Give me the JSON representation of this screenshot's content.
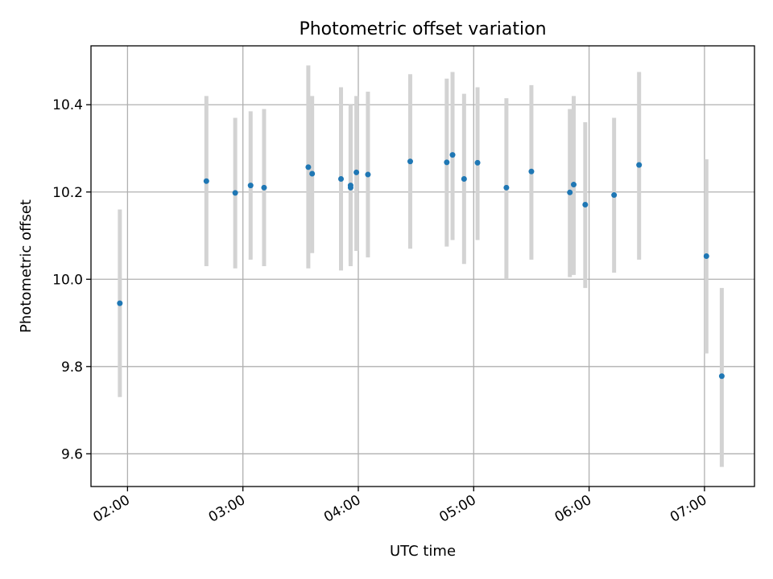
{
  "chart_data": {
    "type": "scatter",
    "title": "Photometric offset variation",
    "xlabel": "UTC time",
    "ylabel": "Photometric offset",
    "xlim": [
      "01:41",
      "07:26"
    ],
    "ylim": [
      9.525,
      10.535
    ],
    "x_ticks": [
      "02:00",
      "03:00",
      "04:00",
      "05:00",
      "06:00",
      "07:00"
    ],
    "y_ticks": [
      9.6,
      9.8,
      10.0,
      10.2,
      10.4
    ],
    "y_tick_labels": [
      "9.6",
      "9.8",
      "10.0",
      "10.2",
      "10.4"
    ],
    "grid": true,
    "series": [
      {
        "marker_color": "#1f77b4",
        "errorbar_color": "#d3d3d3",
        "points": [
          {
            "x": "01:56",
            "y": 9.945,
            "lo": 9.73,
            "hi": 10.16
          },
          {
            "x": "02:41",
            "y": 10.225,
            "lo": 10.03,
            "hi": 10.42
          },
          {
            "x": "02:56",
            "y": 10.198,
            "lo": 10.025,
            "hi": 10.37
          },
          {
            "x": "03:04",
            "y": 10.215,
            "lo": 10.045,
            "hi": 10.385
          },
          {
            "x": "03:11",
            "y": 10.21,
            "lo": 10.03,
            "hi": 10.39
          },
          {
            "x": "03:34",
            "y": 10.257,
            "lo": 10.025,
            "hi": 10.49
          },
          {
            "x": "03:36",
            "y": 10.242,
            "lo": 10.06,
            "hi": 10.42
          },
          {
            "x": "03:51",
            "y": 10.23,
            "lo": 10.02,
            "hi": 10.44
          },
          {
            "x": "03:56",
            "y": 10.21,
            "lo": 10.03,
            "hi": 10.395
          },
          {
            "x": "03:56",
            "y": 10.215,
            "lo": 10.04,
            "hi": 10.4
          },
          {
            "x": "03:59",
            "y": 10.245,
            "lo": 10.065,
            "hi": 10.42
          },
          {
            "x": "04:05",
            "y": 10.24,
            "lo": 10.05,
            "hi": 10.43
          },
          {
            "x": "04:27",
            "y": 10.27,
            "lo": 10.07,
            "hi": 10.47
          },
          {
            "x": "04:46",
            "y": 10.268,
            "lo": 10.075,
            "hi": 10.46
          },
          {
            "x": "04:49",
            "y": 10.285,
            "lo": 10.09,
            "hi": 10.475
          },
          {
            "x": "04:55",
            "y": 10.23,
            "lo": 10.035,
            "hi": 10.425
          },
          {
            "x": "05:02",
            "y": 10.267,
            "lo": 10.09,
            "hi": 10.44
          },
          {
            "x": "05:17",
            "y": 10.21,
            "lo": 10.0,
            "hi": 10.415
          },
          {
            "x": "05:30",
            "y": 10.247,
            "lo": 10.045,
            "hi": 10.445
          },
          {
            "x": "05:50",
            "y": 10.199,
            "lo": 10.005,
            "hi": 10.39
          },
          {
            "x": "05:52",
            "y": 10.217,
            "lo": 10.01,
            "hi": 10.42
          },
          {
            "x": "05:58",
            "y": 10.171,
            "lo": 9.98,
            "hi": 10.36
          },
          {
            "x": "06:13",
            "y": 10.193,
            "lo": 10.015,
            "hi": 10.37
          },
          {
            "x": "06:26",
            "y": 10.262,
            "lo": 10.045,
            "hi": 10.475
          },
          {
            "x": "07:01",
            "y": 10.053,
            "lo": 9.83,
            "hi": 10.275
          },
          {
            "x": "07:09",
            "y": 9.778,
            "lo": 9.57,
            "hi": 9.98
          }
        ]
      }
    ]
  }
}
